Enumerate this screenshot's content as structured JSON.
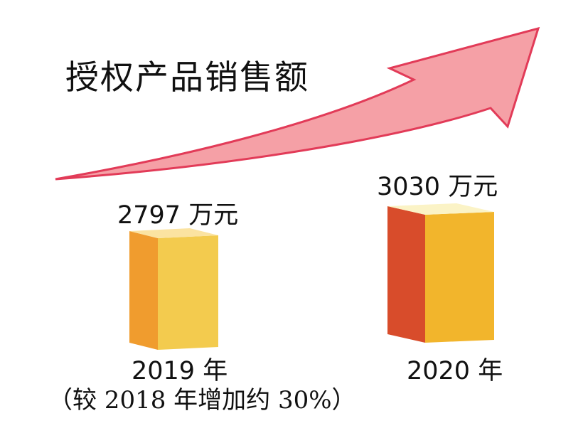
{
  "chart_data": {
    "type": "bar",
    "title": "授权产品销售额",
    "categories": [
      "2019 年",
      "2020 年"
    ],
    "values": [
      2797,
      3030
    ],
    "value_labels": [
      "2797 万元",
      "3030 万元"
    ],
    "unit": "万元",
    "annotations": [
      "（较 2018 年增加约 30%）"
    ],
    "colors": {
      "bar_2019_front": "#F3CB4E",
      "bar_2019_side": "#F09C2E",
      "bar_2019_top": "#FBE3A1",
      "bar_2020_front": "#F2B52C",
      "bar_2020_side": "#D84C2B",
      "bar_2020_top": "#FBF3C6",
      "arrow_fill": "#F5A0A6",
      "arrow_outline": "#E23B58"
    },
    "grid": false,
    "legend": "none"
  }
}
